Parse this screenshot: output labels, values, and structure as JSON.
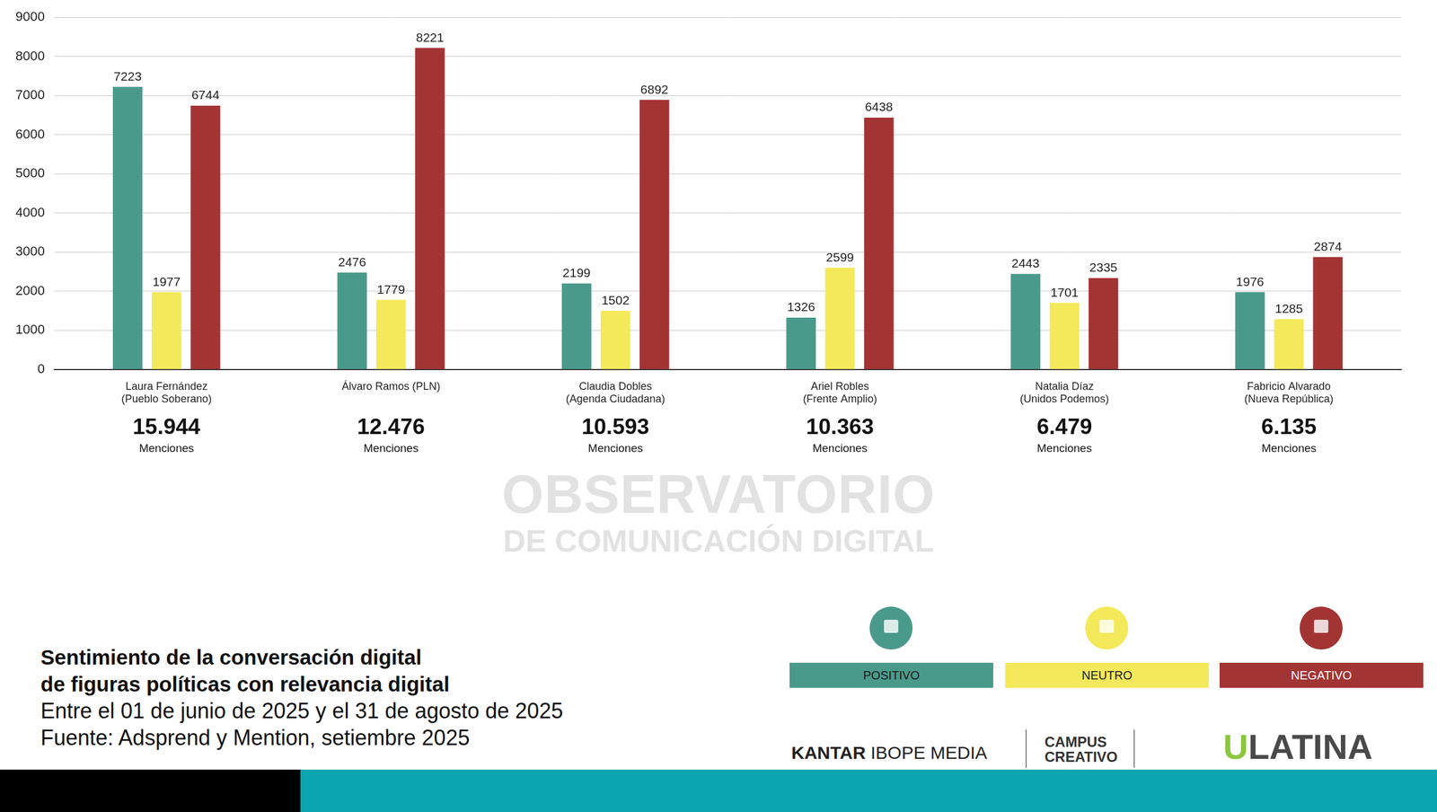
{
  "chart_data": {
    "type": "bar",
    "title": "Sentimiento de la conversación digital\nde figuras políticas con relevancia digital",
    "subtitle": "Entre el 01 de junio de 2025 y el 31 de agosto de 2025",
    "source": "Fuente: Adsprend y Mention, setiembre 2025",
    "categories": [
      "Laura Fernández\n(Pueblo Soberano)",
      "Álvaro Ramos (PLN)",
      "Claudia Dobles\n(Agenda Ciudadana)",
      "Ariel Robles\n(Frente Amplio)",
      "Natalia Díaz\n(Unidos Podemos)",
      "Fabricio Alvarado\n(Nueva República)"
    ],
    "series": [
      {
        "name": "POSITIVO",
        "color": "#4a9a8c",
        "values": [
          7223,
          2476,
          2199,
          1326,
          2443,
          1976
        ]
      },
      {
        "name": "NEUTRO",
        "color": "#f4e95a",
        "values": [
          1977,
          1779,
          1502,
          2599,
          1701,
          1285
        ]
      },
      {
        "name": "NEGATIVO",
        "color": "#a33434",
        "values": [
          6744,
          8221,
          6892,
          6438,
          2335,
          2874
        ]
      }
    ],
    "mentions": {
      "label": "Menciones",
      "values": [
        15944,
        12476,
        10593,
        10363,
        6479,
        6135
      ],
      "value_labels": [
        "15.944",
        "12.476",
        "10.593",
        "10.363",
        "6.479",
        "6.135"
      ]
    },
    "ylim": [
      0,
      9000
    ],
    "yticks": [
      0,
      1000,
      2000,
      3000,
      4000,
      5000,
      6000,
      7000,
      8000,
      9000
    ],
    "grid": true,
    "data_labels": true,
    "legend": "lower right"
  },
  "watermark": [
    "OBSERVATORIO",
    "DE COMUNICACIÓN DIGITAL"
  ],
  "logos": [
    "KANTAR IBOPE MEDIA",
    "CAMPUS\nCREATIVO",
    "ULATINA"
  ]
}
